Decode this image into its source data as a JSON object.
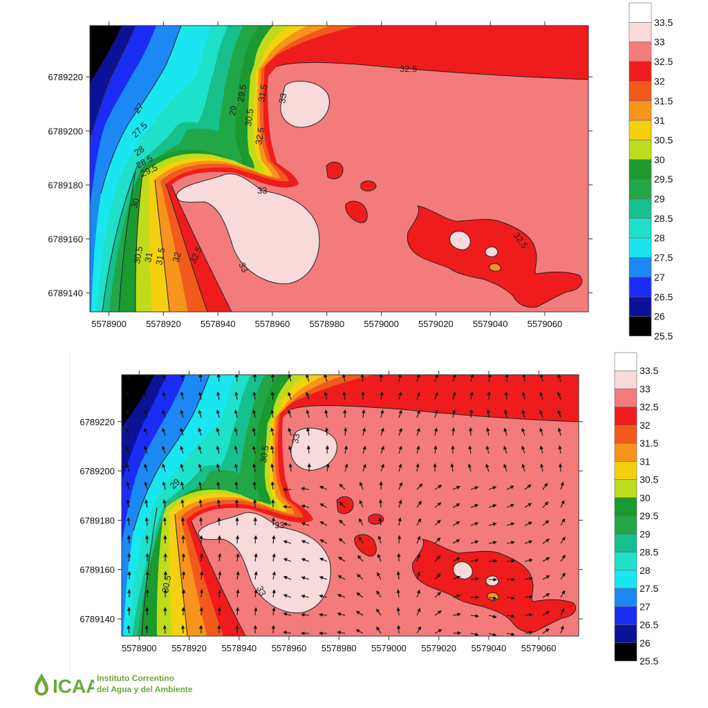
{
  "chart_data": [
    {
      "type": "heatmap",
      "subtype": "filled-contour",
      "x_ticks": [
        "5578900",
        "5578920",
        "5578940",
        "5578960",
        "5578980",
        "5579000",
        "5579020",
        "5579040",
        "5579060"
      ],
      "y_ticks": [
        "6789220",
        "6789200",
        "6789180",
        "6789160",
        "6789140"
      ],
      "xlim": [
        5578893,
        5579076
      ],
      "ylim": [
        6789133,
        6789239
      ],
      "contour_labels": [
        "32.5",
        "33",
        "29.5",
        "29",
        "30.5",
        "31.5",
        "32",
        "32.5",
        "27",
        "27.5",
        "28",
        "28.5",
        "29.5",
        "30",
        "33",
        "30.5",
        "31",
        "31.5",
        "32",
        "32.5",
        "33",
        "32.5"
      ],
      "legend": {
        "values": [
          "33.5",
          "33",
          "32.5",
          "32",
          "31.5",
          "31",
          "30.5",
          "30",
          "29.5",
          "29",
          "28.5",
          "28",
          "27.5",
          "27",
          "26.5",
          "26",
          "25.5"
        ],
        "colors": [
          "#ffffff",
          "#f9dada",
          "#f47b7b",
          "#ee1c1c",
          "#f25a1c",
          "#f7941d",
          "#f5d00e",
          "#bfdc1c",
          "#1a9a2f",
          "#21a747",
          "#16c08c",
          "#1fe0c8",
          "#1ae6f0",
          "#1c88f4",
          "#1b2cf4",
          "#0c1298",
          "#000000"
        ],
        "placement": "right"
      },
      "grid": false
    },
    {
      "type": "heatmap",
      "subtype": "filled-contour-with-vectors",
      "x_ticks": [
        "5578900",
        "5578920",
        "5578940",
        "5578960",
        "5578980",
        "5579000",
        "5579020",
        "5579040",
        "5579060"
      ],
      "y_ticks": [
        "6789220",
        "6789200",
        "6789180",
        "6789160",
        "6789140"
      ],
      "xlim": [
        5578893,
        5579076
      ],
      "ylim": [
        6789133,
        6789239
      ],
      "contour_labels": [
        "33",
        "30.5",
        "29",
        "33",
        "30.5",
        "33"
      ],
      "legend": {
        "values": [
          "33.5",
          "33",
          "32.5",
          "32",
          "31.5",
          "31",
          "30.5",
          "30",
          "29.5",
          "29",
          "28.5",
          "28",
          "27.5",
          "27",
          "26.5",
          "26",
          "25.5"
        ],
        "colors": [
          "#ffffff",
          "#f9dada",
          "#f47b7b",
          "#ee1c1c",
          "#f25a1c",
          "#f7941d",
          "#f5d00e",
          "#bfdc1c",
          "#1a9a2f",
          "#21a747",
          "#16c08c",
          "#1fe0c8",
          "#1ae6f0",
          "#1c88f4",
          "#1b2cf4",
          "#0c1298",
          "#000000"
        ],
        "placement": "right"
      },
      "grid": false
    }
  ],
  "footer": {
    "logo_mark": "ICAA",
    "org_line1": "Instituto Correntino",
    "org_line2": "del Agua y del Ambiente"
  },
  "colors": {
    "brand_green": "#6aa93a",
    "brand_blue": "#1b5fb0"
  }
}
